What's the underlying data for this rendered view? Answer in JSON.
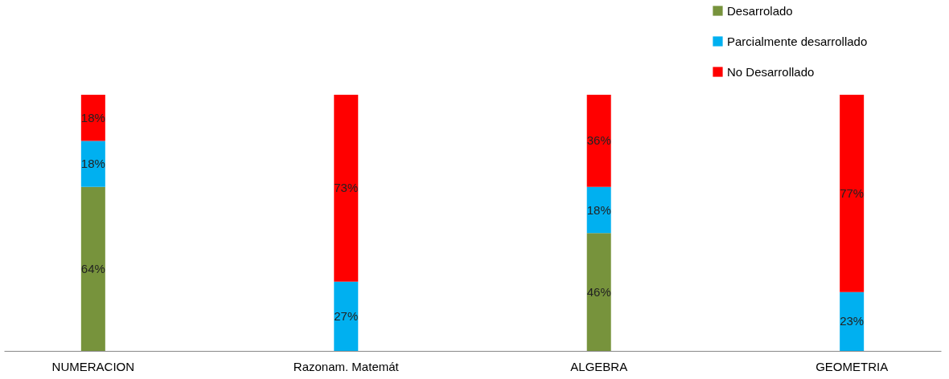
{
  "chart_data": {
    "type": "bar",
    "stacked": true,
    "categories": [
      "NUMERACION",
      "Razonam. Matemát",
      "ALGEBRA",
      "GEOMETRIA"
    ],
    "series": [
      {
        "name": "Desarrolado",
        "color": "#77933c",
        "values": [
          64,
          null,
          46,
          null
        ],
        "value_labels": [
          "64%",
          null,
          "46%",
          null
        ]
      },
      {
        "name": "Parcialmente desarrollado",
        "color": "#00b0f0",
        "values": [
          18,
          27,
          18,
          23
        ],
        "value_labels": [
          "18%",
          "27%",
          "18%",
          "23%"
        ]
      },
      {
        "name": "No Desarrollado",
        "color": "#ff0000",
        "values": [
          18,
          73,
          36,
          77
        ],
        "value_labels": [
          "18%",
          "73%",
          "36%",
          "77%"
        ]
      }
    ],
    "legend": "top right",
    "grid": false
  }
}
